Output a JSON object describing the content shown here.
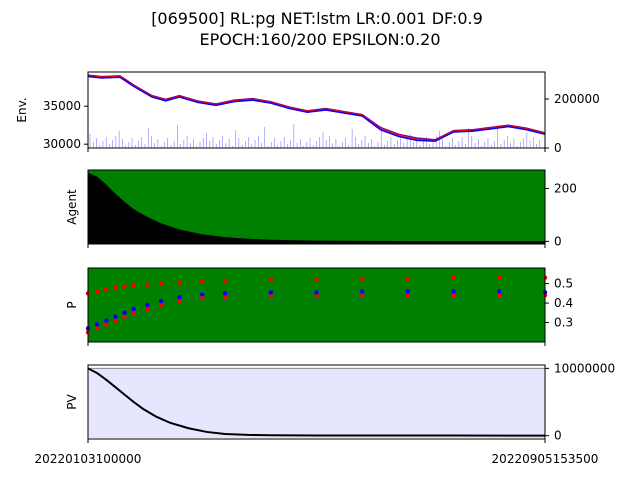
{
  "title_line1": "[069500] RL:pg NET:lstm LR:0.001 DF:0.9",
  "title_line2": "EPOCH:160/200 EPSILON:0.20",
  "x_tick_labels": [
    "20220103100000",
    "20220905153500"
  ],
  "chart_data": [
    {
      "type": "line",
      "panel": "Env.",
      "ylabel": "Env.",
      "yticks_left": [
        "35000",
        "30000"
      ],
      "yticks_right": [
        "200000",
        "0"
      ],
      "ylim_left": [
        29500,
        39500
      ],
      "ylim_right": [
        0,
        310000
      ],
      "x": [
        0,
        0.03,
        0.07,
        0.1,
        0.14,
        0.17,
        0.2,
        0.24,
        0.28,
        0.32,
        0.36,
        0.4,
        0.44,
        0.48,
        0.52,
        0.56,
        0.6,
        0.64,
        0.68,
        0.72,
        0.76,
        0.8,
        0.84,
        0.88,
        0.92,
        0.96,
        1.0
      ],
      "series": [
        {
          "values": [
            39100,
            38900,
            39000,
            37800,
            36400,
            35900,
            36400,
            35700,
            35300,
            35800,
            36000,
            35600,
            34900,
            34400,
            34700,
            34300,
            33900,
            32200,
            31300,
            30800,
            30600,
            31800,
            31900,
            32200,
            32500,
            32100,
            31500
          ],
          "color": "#800080"
        },
        {
          "values": [
            39000,
            38800,
            38900,
            37700,
            36300,
            35800,
            36300,
            35600,
            35200,
            35700,
            35900,
            35500,
            34800,
            34300,
            34600,
            34200,
            33800,
            32000,
            31100,
            30600,
            30500,
            31700,
            31800,
            32100,
            32400,
            32000,
            31400
          ],
          "color": "#ff0000"
        },
        {
          "values": [
            38900,
            38700,
            38800,
            37600,
            36200,
            35700,
            36200,
            35500,
            35100,
            35600,
            35800,
            35400,
            34700,
            34200,
            34500,
            34100,
            33700,
            31900,
            31000,
            30500,
            30400,
            31600,
            31700,
            32000,
            32300,
            31900,
            31300
          ],
          "color": "#0000ff"
        }
      ],
      "volume_bars_color": "#0000ff"
    },
    {
      "type": "area",
      "panel": "Agent",
      "ylabel": "Agent",
      "yticks_right": [
        "200",
        "0"
      ],
      "ylim_right": [
        -10,
        270
      ],
      "background_color": "#008000",
      "x": [
        0,
        0.02,
        0.04,
        0.06,
        0.08,
        0.1,
        0.13,
        0.16,
        0.2,
        0.25,
        0.3,
        0.35,
        0.4,
        0.5,
        0.6,
        0.7,
        0.8,
        0.9,
        1.0
      ],
      "series": [
        {
          "values": [
            260,
            245,
            215,
            180,
            150,
            122,
            92,
            68,
            45,
            27,
            16,
            10,
            6,
            3,
            2,
            1,
            0.5,
            0.3,
            0.2
          ],
          "color": "#000000"
        }
      ]
    },
    {
      "type": "scatter",
      "panel": "P",
      "ylabel": "P",
      "yticks_right": [
        "0.5",
        "0.4",
        "0.3"
      ],
      "ylim_right": [
        0.2,
        0.58
      ],
      "background_color": "#008000",
      "x": [
        0,
        0.02,
        0.04,
        0.06,
        0.08,
        0.1,
        0.13,
        0.16,
        0.2,
        0.25,
        0.3,
        0.4,
        0.5,
        0.6,
        0.7,
        0.8,
        0.9,
        1.0
      ],
      "series": [
        {
          "values": [
            0.25,
            0.27,
            0.29,
            0.31,
            0.33,
            0.35,
            0.37,
            0.39,
            0.41,
            0.425,
            0.43,
            0.435,
            0.435,
            0.44,
            0.44,
            0.44,
            0.44,
            0.44
          ],
          "color": "#ff0000"
        },
        {
          "values": [
            0.27,
            0.29,
            0.31,
            0.33,
            0.35,
            0.37,
            0.39,
            0.41,
            0.43,
            0.445,
            0.45,
            0.455,
            0.455,
            0.46,
            0.46,
            0.46,
            0.46,
            0.455
          ],
          "color": "#0000ff"
        },
        {
          "values": [
            0.45,
            0.46,
            0.47,
            0.48,
            0.485,
            0.49,
            0.495,
            0.5,
            0.505,
            0.51,
            0.515,
            0.52,
            0.52,
            0.525,
            0.525,
            0.53,
            0.53,
            0.53
          ],
          "color": "#ff0000"
        }
      ]
    },
    {
      "type": "line",
      "panel": "PV",
      "ylabel": "PV",
      "yticks_right": [
        "10000000",
        "0"
      ],
      "ylim_right": [
        -500000,
        10500000
      ],
      "fill_color": "#e6e6ff",
      "fill_top": 10000000,
      "x": [
        0,
        0.02,
        0.04,
        0.06,
        0.08,
        0.1,
        0.12,
        0.15,
        0.18,
        0.22,
        0.26,
        0.3,
        0.35,
        0.4,
        0.5,
        0.6,
        0.8,
        1.0
      ],
      "series": [
        {
          "values": [
            10000000,
            9300000,
            8300000,
            7200000,
            6100000,
            5000000,
            4000000,
            2800000,
            1900000,
            1100000,
            550000,
            250000,
            110000,
            50000,
            20000,
            15000,
            12000,
            10000
          ],
          "color": "#000000"
        }
      ]
    }
  ]
}
